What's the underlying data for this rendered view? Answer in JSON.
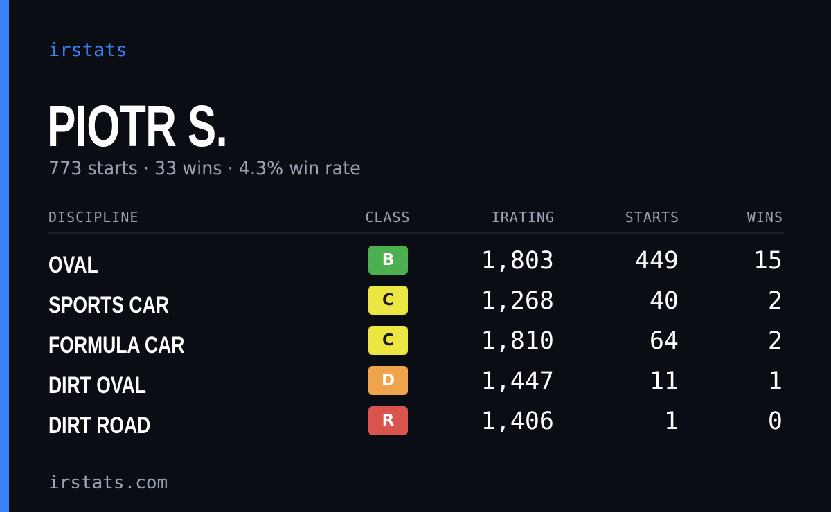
{
  "brand": "irstats",
  "driver": {
    "name": "PIOTR S.",
    "summary": "773 starts · 33 wins · 4.3% win rate"
  },
  "table": {
    "headers": {
      "discipline": "DISCIPLINE",
      "class": "CLASS",
      "irating": "IRATING",
      "starts": "STARTS",
      "wins": "WINS"
    },
    "rows": [
      {
        "discipline": "OVAL",
        "class": "B",
        "class_color": "#4caf50",
        "class_text_color": "#ffffff",
        "irating": "1,803",
        "starts": "449",
        "wins": "15"
      },
      {
        "discipline": "SPORTS CAR",
        "class": "C",
        "class_color": "#ece642",
        "class_text_color": "#1a1a1a",
        "irating": "1,268",
        "starts": "40",
        "wins": "2"
      },
      {
        "discipline": "FORMULA CAR",
        "class": "C",
        "class_color": "#ece642",
        "class_text_color": "#1a1a1a",
        "irating": "1,810",
        "starts": "64",
        "wins": "2"
      },
      {
        "discipline": "DIRT OVAL",
        "class": "D",
        "class_color": "#efa34b",
        "class_text_color": "#ffffff",
        "irating": "1,447",
        "starts": "11",
        "wins": "1"
      },
      {
        "discipline": "DIRT ROAD",
        "class": "R",
        "class_color": "#d9534f",
        "class_text_color": "#ffffff",
        "irating": "1,406",
        "starts": "1",
        "wins": "0"
      }
    ]
  },
  "footer": "irstats.com",
  "colors": {
    "background": "#0a0d14",
    "accent": "#3b82f6",
    "muted_text": "#9ba4b4"
  }
}
